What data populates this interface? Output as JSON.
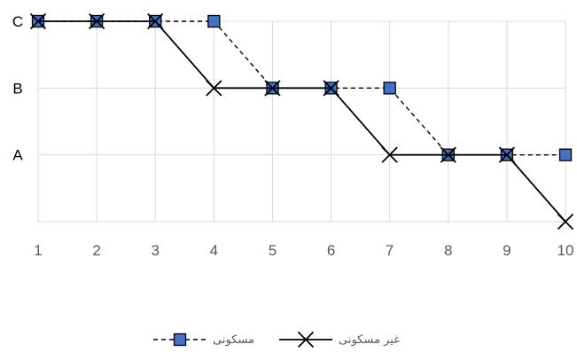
{
  "chart_data": {
    "type": "line",
    "x": [
      1,
      2,
      3,
      4,
      5,
      6,
      7,
      8,
      9,
      10
    ],
    "y_categories": [
      "",
      "A",
      "B",
      "C"
    ],
    "series": [
      {
        "name": "مسکونی",
        "values": [
          "C",
          "C",
          "C",
          "C",
          "B",
          "B",
          "B",
          "A",
          "A",
          "A"
        ],
        "line": "dashed",
        "marker": "square",
        "marker_color": "#4472C4",
        "line_color": "#000000"
      },
      {
        "name": "غیر مسکونی",
        "values": [
          "C",
          "C",
          "C",
          "B",
          "B",
          "B",
          "A",
          "A",
          "A",
          ""
        ],
        "line": "solid",
        "marker": "x",
        "line_color": "#000000"
      }
    ],
    "title": "",
    "xlabel": "",
    "ylabel": "",
    "grid": true,
    "legend_position": "bottom"
  }
}
